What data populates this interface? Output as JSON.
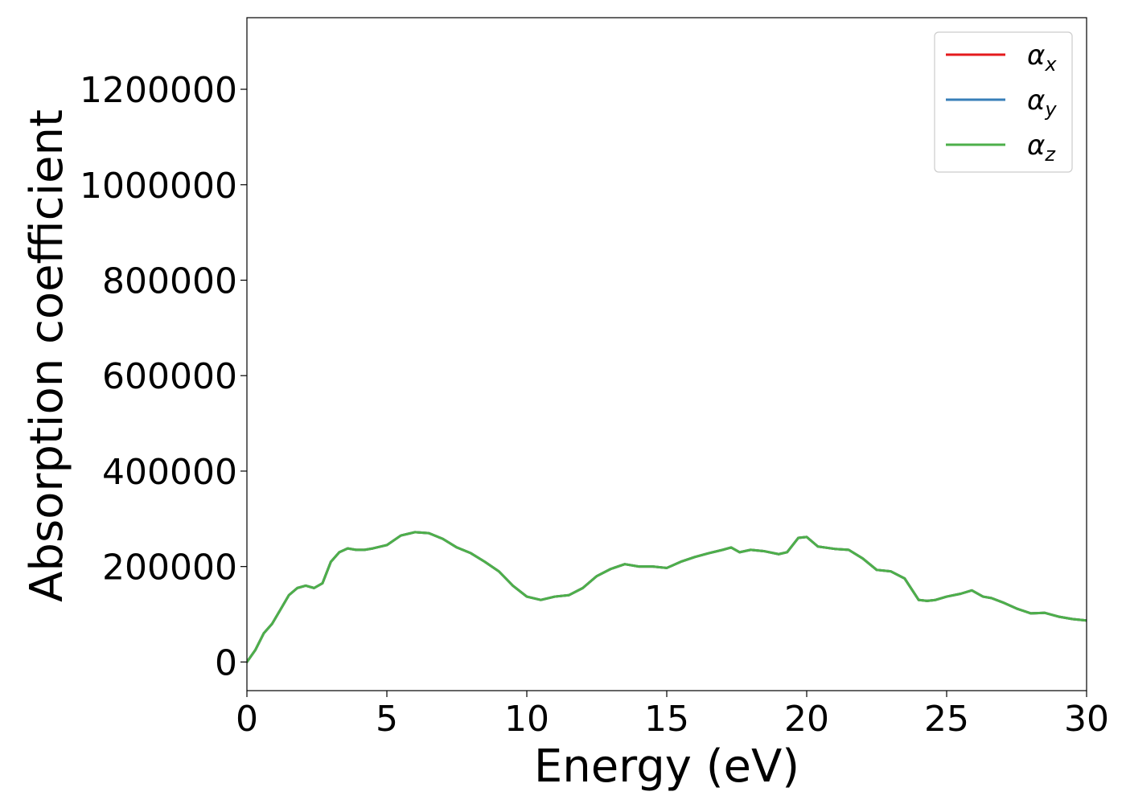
{
  "chart_data": {
    "type": "line",
    "title": "",
    "xlabel": "Energy (eV)",
    "ylabel": "Absorption coefficient",
    "xlim": [
      0,
      30
    ],
    "ylim": [
      -60000,
      1350000
    ],
    "xticks": [
      0,
      5,
      10,
      15,
      20,
      25,
      30
    ],
    "yticks": [
      0,
      200000,
      400000,
      600000,
      800000,
      1000000,
      1200000
    ],
    "xtick_labels": [
      "0",
      "5",
      "10",
      "15",
      "20",
      "25",
      "30"
    ],
    "ytick_labels": [
      "0",
      "200000",
      "400000",
      "600000",
      "800000",
      "1000000",
      "1200000"
    ],
    "grid": false,
    "legend_position": "top-right",
    "x": [
      0,
      0.3,
      0.6,
      0.9,
      1.2,
      1.5,
      1.8,
      2.1,
      2.4,
      2.7,
      3.0,
      3.3,
      3.6,
      3.9,
      4.2,
      4.5,
      5.0,
      5.5,
      6.0,
      6.5,
      7.0,
      7.5,
      8.0,
      8.5,
      9.0,
      9.5,
      10.0,
      10.5,
      11.0,
      11.5,
      12.0,
      12.5,
      13.0,
      13.5,
      14.0,
      14.5,
      15.0,
      15.5,
      16.0,
      16.5,
      17.0,
      17.3,
      17.6,
      18.0,
      18.5,
      19.0,
      19.3,
      19.7,
      20.0,
      20.4,
      21.0,
      21.5,
      22.0,
      22.5,
      23.0,
      23.5,
      24.0,
      24.3,
      24.6,
      25.0,
      25.5,
      25.9,
      26.3,
      26.6,
      27.0,
      27.5,
      28.0,
      28.5,
      29.0,
      29.5,
      30.0
    ],
    "series": [
      {
        "name": "α_x",
        "label_main": "α",
        "label_sub": "x",
        "color": "#e41a1c",
        "values": [
          0,
          25000,
          60000,
          80000,
          110000,
          140000,
          155000,
          160000,
          155000,
          165000,
          210000,
          230000,
          238000,
          235000,
          235000,
          238000,
          245000,
          265000,
          272000,
          270000,
          258000,
          240000,
          228000,
          210000,
          190000,
          160000,
          137000,
          130000,
          137000,
          140000,
          155000,
          180000,
          195000,
          205000,
          200000,
          200000,
          197000,
          210000,
          220000,
          228000,
          235000,
          240000,
          230000,
          235000,
          232000,
          226000,
          230000,
          260000,
          262000,
          242000,
          237000,
          235000,
          217000,
          193000,
          190000,
          175000,
          130000,
          128000,
          130000,
          137000,
          143000,
          150000,
          137000,
          134000,
          125000,
          112000,
          102000,
          103000,
          95000,
          90000,
          87000
        ]
      },
      {
        "name": "α_y",
        "label_main": "α",
        "label_sub": "y",
        "color": "#377eb8",
        "values": [
          0,
          25000,
          60000,
          80000,
          110000,
          140000,
          155000,
          160000,
          155000,
          165000,
          210000,
          230000,
          238000,
          235000,
          235000,
          238000,
          245000,
          265000,
          272000,
          270000,
          258000,
          240000,
          228000,
          210000,
          190000,
          160000,
          137000,
          130000,
          137000,
          140000,
          155000,
          180000,
          195000,
          205000,
          200000,
          200000,
          197000,
          210000,
          220000,
          228000,
          235000,
          240000,
          230000,
          235000,
          232000,
          226000,
          230000,
          260000,
          262000,
          242000,
          237000,
          235000,
          217000,
          193000,
          190000,
          175000,
          130000,
          128000,
          130000,
          137000,
          143000,
          150000,
          137000,
          134000,
          125000,
          112000,
          102000,
          103000,
          95000,
          90000,
          87000
        ]
      },
      {
        "name": "α_z",
        "label_main": "α",
        "label_sub": "z",
        "color": "#4daf4a",
        "values": [
          0,
          25000,
          60000,
          80000,
          110000,
          140000,
          155000,
          160000,
          155000,
          165000,
          210000,
          230000,
          238000,
          235000,
          235000,
          238000,
          245000,
          265000,
          272000,
          270000,
          258000,
          240000,
          228000,
          210000,
          190000,
          160000,
          137000,
          130000,
          137000,
          140000,
          155000,
          180000,
          195000,
          205000,
          200000,
          200000,
          197000,
          210000,
          220000,
          228000,
          235000,
          240000,
          230000,
          235000,
          232000,
          226000,
          230000,
          260000,
          262000,
          242000,
          237000,
          235000,
          217000,
          193000,
          190000,
          175000,
          130000,
          128000,
          130000,
          137000,
          143000,
          150000,
          137000,
          134000,
          125000,
          112000,
          102000,
          103000,
          95000,
          90000,
          87000
        ]
      }
    ]
  }
}
